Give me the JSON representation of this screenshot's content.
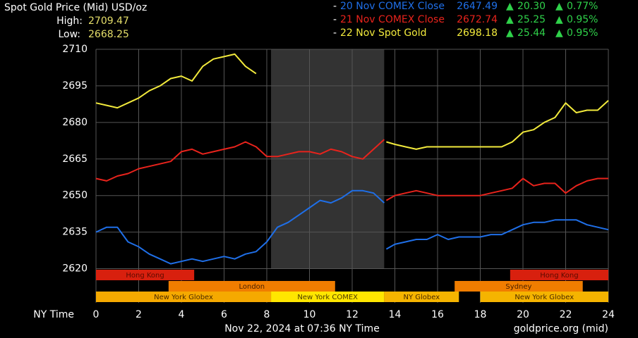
{
  "chart_data": {
    "type": "line",
    "title": "Spot Gold Price (Mid) USD/oz",
    "high_label": "High:",
    "high": 2709.47,
    "low_label": "Low:",
    "low": 2668.25,
    "x_label": "NY Time",
    "footer_left": "Nov 22, 2024 at 07:36 NY Time",
    "footer_right": "goldprice.org (mid)",
    "grid": true,
    "xlim": [
      0,
      24
    ],
    "xticks": [
      0,
      2,
      4,
      6,
      8,
      10,
      12,
      14,
      16,
      18,
      20,
      22,
      24
    ],
    "ylim": [
      2606,
      2710
    ],
    "yticks": [
      2620,
      2635,
      2650,
      2665,
      2680,
      2695,
      2710
    ],
    "sessions": [
      "Hong Kong",
      "Hong Kong",
      "London",
      "Sydney",
      "New York Globex",
      "New York COMEX",
      "NY Globex",
      "New York Globex"
    ],
    "x": [
      0,
      0.5,
      1,
      1.5,
      2,
      2.5,
      3,
      3.5,
      4,
      4.5,
      5,
      5.5,
      6,
      6.5,
      7,
      7.5,
      8,
      8.5,
      9,
      9.5,
      10,
      10.5,
      11,
      11.5,
      12,
      12.5,
      13,
      13.5,
      13.55,
      13.6,
      14,
      14.5,
      15,
      15.5,
      16,
      16.5,
      17,
      17.5,
      18,
      18.5,
      19,
      19.5,
      20,
      20.5,
      21,
      21.5,
      22,
      22.5,
      23,
      23.5,
      24
    ],
    "series": [
      {
        "name": "20 Nov COMEX Close",
        "color": "#1f6fe8",
        "close": 2647.49,
        "change": "20.30",
        "change_pct": "0.77%",
        "values": [
          2635,
          2637,
          2637,
          2631,
          2629,
          2626,
          2624,
          2622,
          2623,
          2624,
          2623,
          2624,
          2625,
          2624,
          2626,
          2627,
          2631,
          2637,
          2639,
          2642,
          2645,
          2648,
          2647,
          2649,
          2652,
          2652,
          2651,
          2647,
          null,
          2628,
          2630,
          2631,
          2632,
          2632,
          2634,
          2632,
          2633,
          2633,
          2633,
          2634,
          2634,
          2636,
          2638,
          2639,
          2639,
          2640,
          2640,
          2640,
          2638,
          2637,
          2636
        ]
      },
      {
        "name": "21 Nov COMEX Close",
        "color": "#e8231c",
        "close": 2672.74,
        "change": "25.25",
        "change_pct": "0.95%",
        "values": [
          2657,
          2656,
          2658,
          2659,
          2661,
          2662,
          2663,
          2664,
          2668,
          2669,
          2667,
          2668,
          2669,
          2670,
          2672,
          2670,
          2666,
          2666,
          2667,
          2668,
          2668,
          2667,
          2669,
          2668,
          2666,
          2665,
          2669,
          2673,
          null,
          2648,
          2650,
          2651,
          2652,
          2651,
          2650,
          2650,
          2650,
          2650,
          2650,
          2651,
          2652,
          2653,
          2657,
          2654,
          2655,
          2655,
          2651,
          2654,
          2656,
          2657,
          2657
        ]
      },
      {
        "name": "22 Nov Spot Gold",
        "color": "#f2ea3c",
        "close": 2698.18,
        "change": "25.44",
        "change_pct": "0.95%",
        "values": [
          2688,
          2687,
          2686,
          2688,
          2690,
          2693,
          2695,
          2698,
          2699,
          2697,
          2703,
          2706,
          2707,
          2708,
          2703,
          2700,
          null,
          null,
          null,
          null,
          null,
          null,
          null,
          null,
          null,
          null,
          null,
          null,
          null,
          2672,
          2671,
          2670,
          2669,
          2670,
          2670,
          2670,
          2670,
          2670,
          2670,
          2670,
          2670,
          2672,
          2676,
          2677,
          2680,
          2682,
          2688,
          2684,
          2685,
          2685,
          2689
        ]
      }
    ]
  }
}
